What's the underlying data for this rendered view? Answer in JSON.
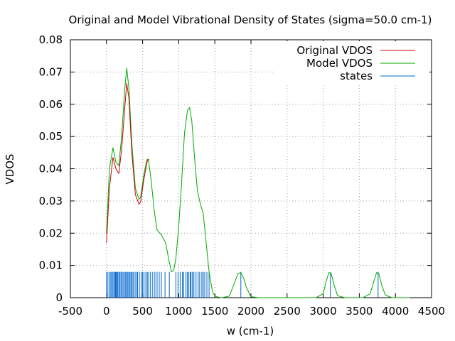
{
  "chart_data": {
    "type": "line",
    "title": "Original and Model Vibrational Density of States (sigma=50.0 cm-1)",
    "xlabel": "w (cm-1)",
    "ylabel": "VDOS",
    "xlim": [
      -500,
      4500
    ],
    "ylim": [
      0,
      0.08
    ],
    "x_ticks": [
      -500,
      0,
      500,
      1000,
      1500,
      2000,
      2500,
      3000,
      3500,
      4000,
      4500
    ],
    "x_tick_labels": [
      "-500",
      "0",
      "500",
      "1000",
      "1500",
      "2000",
      "2500",
      "3000",
      "3500",
      "4000",
      "4500"
    ],
    "y_ticks": [
      0,
      0.01,
      0.02,
      0.03,
      0.04,
      0.05,
      0.06,
      0.07,
      0.08
    ],
    "y_tick_labels": [
      "0",
      "0.01",
      "0.02",
      "0.03",
      "0.04",
      "0.05",
      "0.06",
      "0.07",
      "0.08"
    ],
    "grid": true,
    "legend_position": "top-right",
    "series": [
      {
        "name": "Original VDOS",
        "color": "#cc0000",
        "x": [
          0,
          40,
          90,
          130,
          170,
          210,
          250,
          280,
          310,
          350,
          400,
          450,
          470,
          520,
          560,
          580
        ],
        "values": [
          0.017,
          0.034,
          0.0435,
          0.04,
          0.0385,
          0.046,
          0.058,
          0.0665,
          0.062,
          0.045,
          0.032,
          0.029,
          0.0295,
          0.037,
          0.042,
          0.043
        ]
      },
      {
        "name": "Model VDOS",
        "color": "#00aa00",
        "x": [
          0,
          40,
          90,
          130,
          170,
          210,
          250,
          280,
          310,
          350,
          400,
          450,
          470,
          520,
          560,
          580,
          620,
          660,
          700,
          760,
          820,
          860,
          900,
          930,
          960,
          1000,
          1040,
          1080,
          1120,
          1150,
          1180,
          1220,
          1260,
          1300,
          1340,
          1380,
          1420,
          1470,
          1520,
          1560,
          1600,
          1700,
          1780,
          1820,
          1860,
          1900,
          1940,
          2000,
          2100,
          2500,
          2900,
          3000,
          3040,
          3080,
          3110,
          3150,
          3200,
          3300,
          3550,
          3650,
          3700,
          3740,
          3770,
          3810,
          3860,
          3950,
          4200
        ],
        "values": [
          0.02,
          0.04,
          0.0465,
          0.042,
          0.041,
          0.05,
          0.064,
          0.0712,
          0.065,
          0.048,
          0.034,
          0.0305,
          0.031,
          0.0385,
          0.0428,
          0.043,
          0.036,
          0.027,
          0.021,
          0.0195,
          0.017,
          0.012,
          0.008,
          0.0085,
          0.012,
          0.022,
          0.036,
          0.051,
          0.058,
          0.059,
          0.055,
          0.043,
          0.033,
          0.029,
          0.026,
          0.017,
          0.008,
          0.0015,
          0.0003,
          0.0001,
          0.0,
          0.0005,
          0.005,
          0.0075,
          0.0078,
          0.006,
          0.003,
          0.0003,
          0.0,
          0.0,
          0.0,
          0.0012,
          0.005,
          0.0078,
          0.0075,
          0.004,
          0.0006,
          0.0,
          0.0,
          0.0012,
          0.005,
          0.0078,
          0.0075,
          0.004,
          0.0008,
          0.0,
          0.0
        ]
      },
      {
        "name": "states",
        "color": "#0066cc",
        "type": "impulse",
        "value": 0.008,
        "positions": [
          0,
          20,
          45,
          60,
          75,
          90,
          105,
          120,
          130,
          140,
          155,
          170,
          185,
          200,
          215,
          230,
          250,
          265,
          280,
          295,
          310,
          325,
          340,
          355,
          370,
          395,
          410,
          430,
          455,
          480,
          500,
          520,
          545,
          565,
          585,
          610,
          640,
          670,
          700,
          730,
          760,
          810,
          870,
          960,
          990,
          1020,
          1050,
          1070,
          1100,
          1120,
          1140,
          1160,
          1170,
          1190,
          1210,
          1240,
          1270,
          1290,
          1320,
          1340,
          1360,
          1390,
          1420,
          1860,
          3100,
          3760
        ]
      }
    ]
  }
}
